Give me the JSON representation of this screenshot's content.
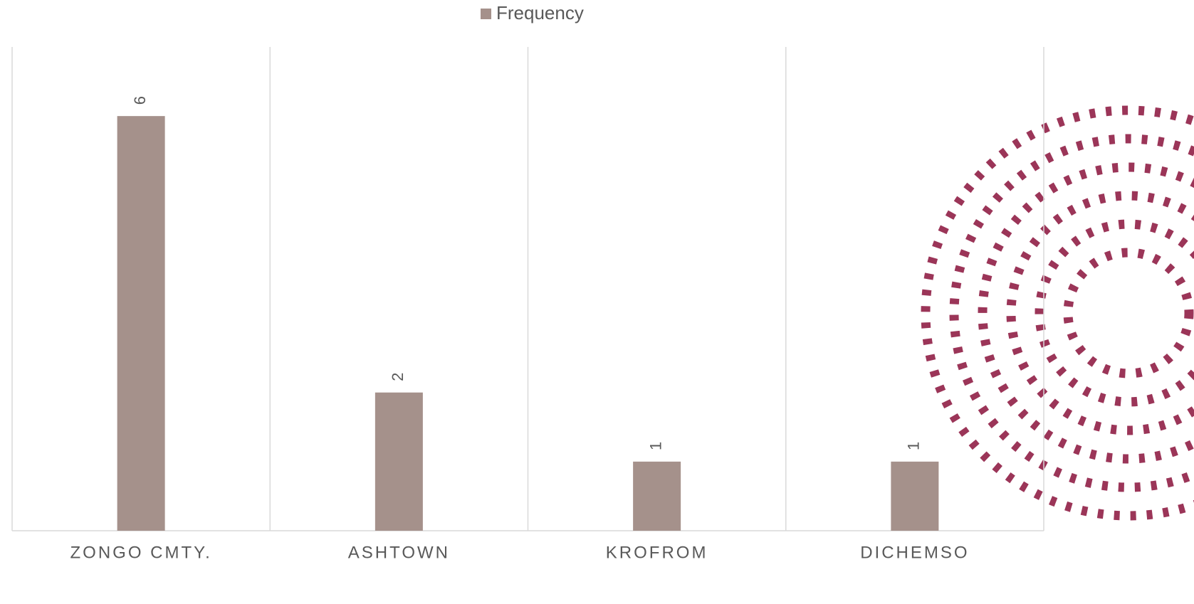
{
  "chart_data": {
    "type": "bar",
    "categories": [
      "ZONGO CMTY.",
      "ASHTOWN",
      "KROFROM",
      "DICHEMSO"
    ],
    "series": [
      {
        "name": "Frequency",
        "color": "#a5918b",
        "values": [
          6,
          2,
          1,
          1
        ]
      }
    ],
    "ylim": [
      0,
      7
    ],
    "legend": "top"
  }
}
